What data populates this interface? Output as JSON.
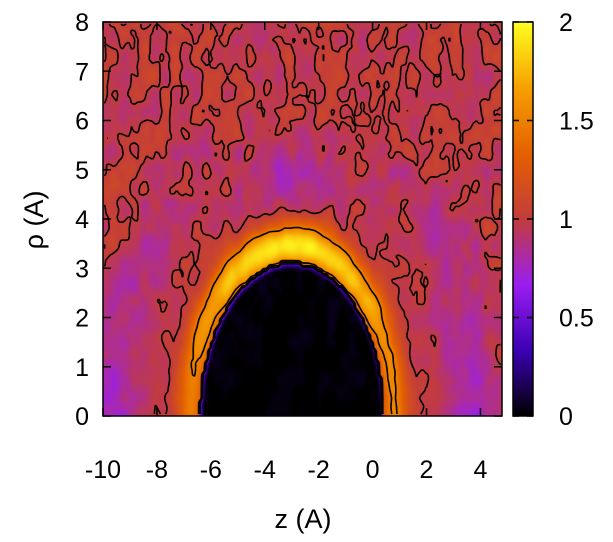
{
  "chart_data": {
    "type": "heatmap",
    "title": "",
    "xlabel": "z (A)",
    "ylabel": "ρ (A)",
    "xlim": [
      -10.0,
      4.8
    ],
    "ylim": [
      0,
      8
    ],
    "xticks": [
      "-10",
      "-8",
      "-6",
      "-4",
      "-2",
      "0",
      "2",
      "4"
    ],
    "xtick_values": [
      -10,
      -8,
      -6,
      -4,
      -2,
      0,
      2,
      4
    ],
    "yticks": [
      "0",
      "1",
      "2",
      "3",
      "4",
      "5",
      "6",
      "7",
      "8"
    ],
    "ytick_values": [
      0,
      1,
      2,
      3,
      4,
      5,
      6,
      7,
      8
    ],
    "colorbar": {
      "range": [
        0,
        2
      ],
      "ticks": [
        "0",
        "0.5",
        "1",
        "1.5",
        "2"
      ],
      "tick_values": [
        0,
        0.5,
        1,
        1.5,
        2
      ],
      "palette": [
        "#000000",
        "#3c00b4",
        "#9a1ef0",
        "#c23c3c",
        "#e46000",
        "#f6a000",
        "#ffff20"
      ]
    },
    "contour_levels": [
      0.5,
      1.0,
      1.5
    ],
    "grid": false,
    "features": {
      "excluded_region": {
        "center_z": -3.0,
        "radius_rho": 3.1,
        "half_width_z": 3.4,
        "value": 0
      },
      "inner_peak_ring": {
        "value": 1.9,
        "rho_at_top": 3.8
      },
      "upper_depletion": {
        "center_z": -2.8,
        "center_rho": 4.8,
        "value": 0.8
      },
      "outer_depletion_shell": {
        "value": 0.75
      },
      "bulk_value": 1.0
    }
  }
}
